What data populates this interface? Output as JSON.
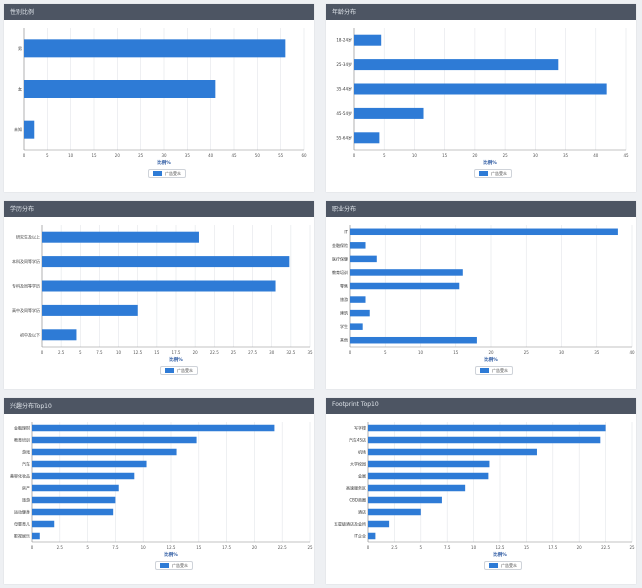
{
  "colors": {
    "bar": "#2e7bd6",
    "header": "#4d5563",
    "grid": "#e3e5e9",
    "axis": "#888888"
  },
  "panels": [
    {
      "title": "性别比例",
      "legend": "广告受众",
      "chart_data": {
        "type": "bar",
        "orientation": "horizontal",
        "categories": [
          "男",
          "女",
          "未知"
        ],
        "values": [
          56,
          41,
          2.2
        ],
        "xticks": [
          0,
          5,
          10,
          15,
          20,
          25,
          30,
          35,
          40,
          45,
          50,
          55,
          60
        ],
        "xlabel": "比例%",
        "xlim": [
          0,
          60
        ]
      }
    },
    {
      "title": "年龄分布",
      "legend": "广告受众",
      "chart_data": {
        "type": "bar",
        "orientation": "horizontal",
        "categories": [
          "18-24岁",
          "25-34岁",
          "35-44岁",
          "45-54岁",
          "55-64岁"
        ],
        "values": [
          4.5,
          33.8,
          41.8,
          11.5,
          4.2
        ],
        "xticks": [
          0,
          5,
          10,
          15,
          20,
          25,
          30,
          35,
          40,
          45
        ],
        "xlabel": "比例%",
        "xlim": [
          0,
          45
        ]
      }
    },
    {
      "title": "学历分布",
      "legend": "广告受众",
      "chart_data": {
        "type": "bar",
        "orientation": "horizontal",
        "categories": [
          "研究生及以上",
          "本科及同等学历",
          "专科及同等学历",
          "高中及同等学历",
          "初中及以下"
        ],
        "values": [
          20.5,
          32.3,
          30.5,
          12.5,
          4.5
        ],
        "xticks": [
          0,
          2.5,
          5,
          7.5,
          10,
          12.5,
          15,
          17.5,
          20,
          22.5,
          25,
          27.5,
          30,
          32.5,
          35
        ],
        "xlabel": "比例%",
        "xlim": [
          0,
          35
        ]
      }
    },
    {
      "title": "职业分布",
      "legend": "广告受众",
      "chart_data": {
        "type": "bar",
        "orientation": "horizontal",
        "categories": [
          "IT",
          "金融保险",
          "医疗保健",
          "教育培训",
          "零售",
          "旅游",
          "建筑",
          "学生",
          "其他"
        ],
        "values": [
          38,
          2.2,
          3.8,
          16,
          15.5,
          2.2,
          2.8,
          1.8,
          18
        ],
        "xticks": [
          0,
          5,
          10,
          15,
          20,
          25,
          30,
          35,
          40
        ],
        "xlabel": "比例%",
        "xlim": [
          0,
          40
        ]
      }
    },
    {
      "title": "兴趣分布Top10",
      "legend": "广告受众",
      "chart_data": {
        "type": "bar",
        "orientation": "horizontal",
        "categories": [
          "金融理财",
          "教育培训",
          "游戏",
          "汽车",
          "美容化妆品",
          "房产",
          "旅游",
          "运动健身",
          "母婴育儿",
          "影视娱乐"
        ],
        "values": [
          21.8,
          14.8,
          13,
          10.3,
          9.2,
          7.8,
          7.5,
          7.3,
          2,
          0.7
        ],
        "xticks": [
          0,
          2.5,
          5,
          7.5,
          10,
          12.5,
          15,
          17.5,
          20,
          22.5,
          25
        ],
        "xlabel": "比例%",
        "xlim": [
          0,
          25
        ]
      }
    },
    {
      "title": "Footprint Top10",
      "legend": "广告受众",
      "chart_data": {
        "type": "bar",
        "orientation": "horizontal",
        "categories": [
          "写字楼",
          "汽车4S店",
          "机场",
          "大学校园",
          "会展",
          "高速服务区",
          "CBD商圈",
          "酒店",
          "五星级酒店及会所",
          "IT企业"
        ],
        "values": [
          22.5,
          22,
          16,
          11.5,
          11.4,
          9.2,
          7,
          5,
          2,
          0.7
        ],
        "xticks": [
          0,
          2.5,
          5,
          7.5,
          10,
          12.5,
          15,
          17.5,
          20,
          22.5,
          25
        ],
        "xlabel": "比例%",
        "xlim": [
          0,
          25
        ]
      }
    }
  ]
}
